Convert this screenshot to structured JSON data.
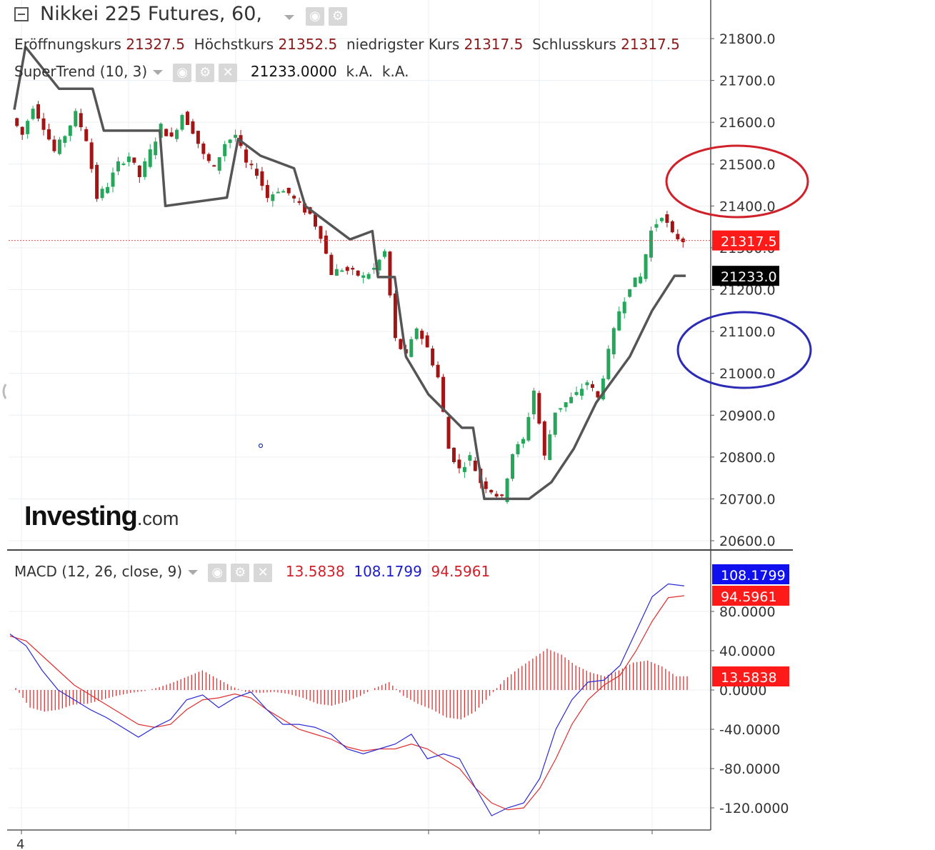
{
  "header": {
    "title": "Nikkei 225 Futures, 60,",
    "ohlc": [
      {
        "label": "Eröffnungskurs",
        "value": "21327.5"
      },
      {
        "label": "Höchstkurs",
        "value": "21352.5"
      },
      {
        "label": "niedrigster Kurs",
        "value": "21317.5"
      },
      {
        "label": "Schlusskurs",
        "value": "21317.5"
      }
    ],
    "supertrend": {
      "name": "SuperTrend (10, 3)",
      "value": "21233.0000",
      "na1": "k.A.",
      "na2": "k.A."
    },
    "macd": {
      "name": "MACD (12, 26, close, 9)",
      "hist": "13.5838",
      "macd": "108.1799",
      "signal": "94.5961"
    }
  },
  "logo": {
    "main": "Investing",
    "suffix": ".com"
  },
  "chart_data": [
    {
      "type": "candlestick",
      "title": "Nikkei 225 Futures, 60,",
      "ylim": [
        20600,
        21850
      ],
      "y_ticks": [
        "21800.0",
        "21700.0",
        "21600.0",
        "21500.0",
        "21400.0",
        "21300.0",
        "21200.0",
        "21100.0",
        "21000.0",
        "20900.0",
        "20800.0",
        "20700.0",
        "20600.0"
      ],
      "x_tick_labels": [
        "4"
      ],
      "last_price": 21317.5,
      "last_price_label": "21317.5",
      "supertrend_value": 21233.0,
      "supertrend_label": "21233.0",
      "supertrend_color": "#555555",
      "up_color": "#26a65b",
      "down_color": "#a31515",
      "close_path": [
        21610,
        21570,
        21640,
        21590,
        21530,
        21570,
        21620,
        21560,
        21420,
        21450,
        21500,
        21520,
        21470,
        21530,
        21590,
        21560,
        21620,
        21580,
        21520,
        21490,
        21550,
        21570,
        21500,
        21480,
        21420,
        21440,
        21430,
        21400,
        21380,
        21330,
        21240,
        21250,
        21240,
        21230,
        21250,
        21290,
        21080,
        21040,
        21110,
        21060,
        20990,
        20820,
        20770,
        20800,
        20740,
        20720,
        20700,
        20810,
        20840,
        20960,
        20800,
        20910,
        20930,
        20950,
        20980,
        20940,
        21050,
        21150,
        21210,
        21230,
        21340,
        21380,
        21330,
        21318
      ],
      "supertrend_path": [
        [
          0,
          21630
        ],
        [
          1,
          21780
        ],
        [
          4,
          21680
        ],
        [
          7,
          21680
        ],
        [
          8,
          21580
        ],
        [
          13,
          21580
        ],
        [
          13.5,
          21400
        ],
        [
          19,
          21420
        ],
        [
          20,
          21560
        ],
        [
          22,
          21520
        ],
        [
          25,
          21490
        ],
        [
          26,
          21400
        ],
        [
          30,
          21320
        ],
        [
          32,
          21340
        ],
        [
          32.5,
          21230
        ],
        [
          34,
          21230
        ],
        [
          35,
          21040
        ],
        [
          37,
          20950
        ],
        [
          40,
          20870
        ],
        [
          41,
          20870
        ],
        [
          42,
          20700
        ],
        [
          46,
          20700
        ],
        [
          48,
          20740
        ],
        [
          50,
          20820
        ],
        [
          52,
          20930
        ],
        [
          55,
          21040
        ],
        [
          57,
          21150
        ],
        [
          59,
          21233
        ],
        [
          60,
          21233
        ]
      ]
    },
    {
      "type": "macd",
      "title": "MACD (12, 26, close, 9)",
      "ylim": [
        -150,
        110
      ],
      "y_ticks": [
        "80.0000",
        "40.0000",
        "0.0000",
        "-40.0000",
        "-80.0000",
        "-120.0000"
      ],
      "series": [
        {
          "name": "MACD",
          "color": "#2b2bd6",
          "values": [
            57,
            45,
            20,
            0,
            -10,
            -20,
            -28,
            -38,
            -48,
            -38,
            -30,
            -10,
            -5,
            -18,
            -8,
            -2,
            -20,
            -35,
            -35,
            -38,
            -45,
            -60,
            -65,
            -60,
            -55,
            -45,
            -70,
            -65,
            -70,
            -100,
            -128,
            -120,
            -115,
            -90,
            -40,
            -10,
            8,
            10,
            25,
            60,
            95,
            108,
            106
          ]
        },
        {
          "name": "Signal",
          "color": "#e03030",
          "values": [
            55,
            50,
            35,
            20,
            5,
            -5,
            -15,
            -25,
            -35,
            -38,
            -35,
            -20,
            -10,
            -8,
            -4,
            -8,
            -20,
            -30,
            -40,
            -45,
            -50,
            -58,
            -62,
            -60,
            -60,
            -55,
            -60,
            -70,
            -80,
            -100,
            -115,
            -122,
            -120,
            -100,
            -70,
            -35,
            -10,
            5,
            15,
            40,
            70,
            94,
            96
          ]
        },
        {
          "name": "Histogram",
          "color": "#e03030",
          "values": [
            2,
            -18,
            -22,
            -20,
            -15,
            -14,
            -10,
            -6,
            -3,
            -1,
            3,
            8,
            14,
            20,
            12,
            4,
            -2,
            -3,
            -2,
            -4,
            -8,
            -14,
            -16,
            -12,
            -6,
            2,
            8,
            -6,
            -14,
            -20,
            -28,
            -30,
            -22,
            -6,
            10,
            22,
            32,
            42,
            36,
            25,
            18,
            14,
            20,
            28,
            30,
            24,
            14
          ]
        }
      ],
      "labels": {
        "hist": "13.5838",
        "macd": "108.1799",
        "signal": "94.5961"
      }
    }
  ],
  "annotations": [
    {
      "shape": "ellipse",
      "color": "#d0212a"
    },
    {
      "shape": "ellipse",
      "color": "#2b2bb5"
    }
  ]
}
